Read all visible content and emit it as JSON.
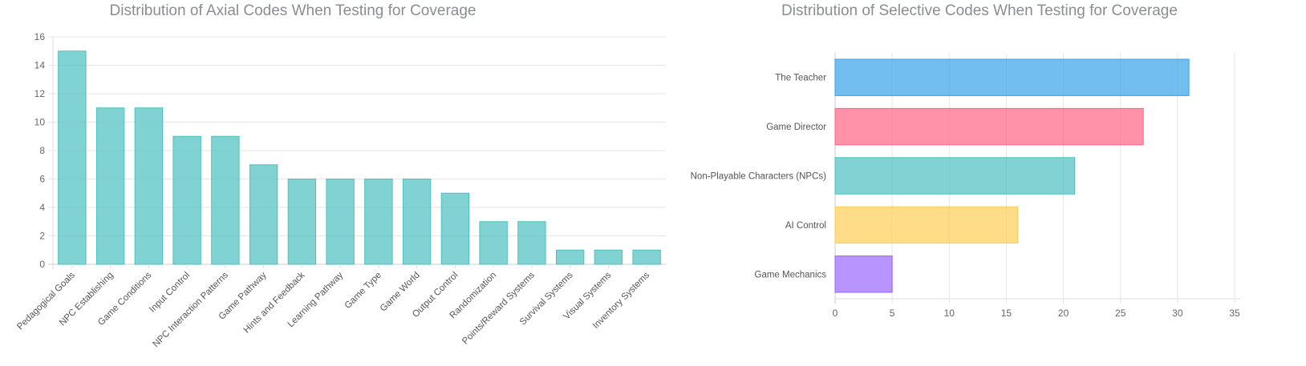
{
  "chart_data": [
    {
      "type": "bar",
      "orientation": "vertical",
      "title": "Distribution of Axial Codes When Testing for Coverage",
      "categories": [
        "Pedagogical Goals",
        "NPC Establishing",
        "Game Conditions",
        "Input Control",
        "NPC Interaction Patterns",
        "Game Pathway",
        "Hints and Feedback",
        "Learning Pathway",
        "Game Type",
        "Game World",
        "Output Control",
        "Randomization",
        "Points/Reward Systems",
        "Survival Systems",
        "Visual Systems",
        "Inventory Systems"
      ],
      "values": [
        15,
        11,
        11,
        9,
        9,
        7,
        6,
        6,
        6,
        6,
        5,
        3,
        3,
        1,
        1,
        1
      ],
      "ylim": [
        0,
        16
      ],
      "yticks": [
        "0",
        "2",
        "4",
        "6",
        "8",
        "10",
        "12",
        "14",
        "16"
      ],
      "grid": true,
      "colors": {
        "fill": "rgba(75,192,192,0.7)",
        "border": "#4bc0c0"
      }
    },
    {
      "type": "bar",
      "orientation": "horizontal",
      "title": "Distribution of Selective Codes When Testing for Coverage",
      "categories": [
        "The Teacher",
        "Game Director",
        "Non-Playable Characters (NPCs)",
        "AI Control",
        "Game Mechanics"
      ],
      "values": [
        31,
        27,
        21,
        16,
        5
      ],
      "xlim": [
        0,
        35
      ],
      "xticks": [
        "0",
        "5",
        "10",
        "15",
        "20",
        "25",
        "30",
        "35"
      ],
      "grid": true,
      "colors": [
        {
          "fill": "rgba(54,162,235,0.7)",
          "border": "#36a2eb"
        },
        {
          "fill": "rgba(255,99,132,0.7)",
          "border": "#ff6384"
        },
        {
          "fill": "rgba(75,192,192,0.7)",
          "border": "#4bc0c0"
        },
        {
          "fill": "rgba(255,205,86,0.7)",
          "border": "#ffcd56"
        },
        {
          "fill": "rgba(153,102,255,0.7)",
          "border": "#9966ff"
        }
      ]
    }
  ]
}
